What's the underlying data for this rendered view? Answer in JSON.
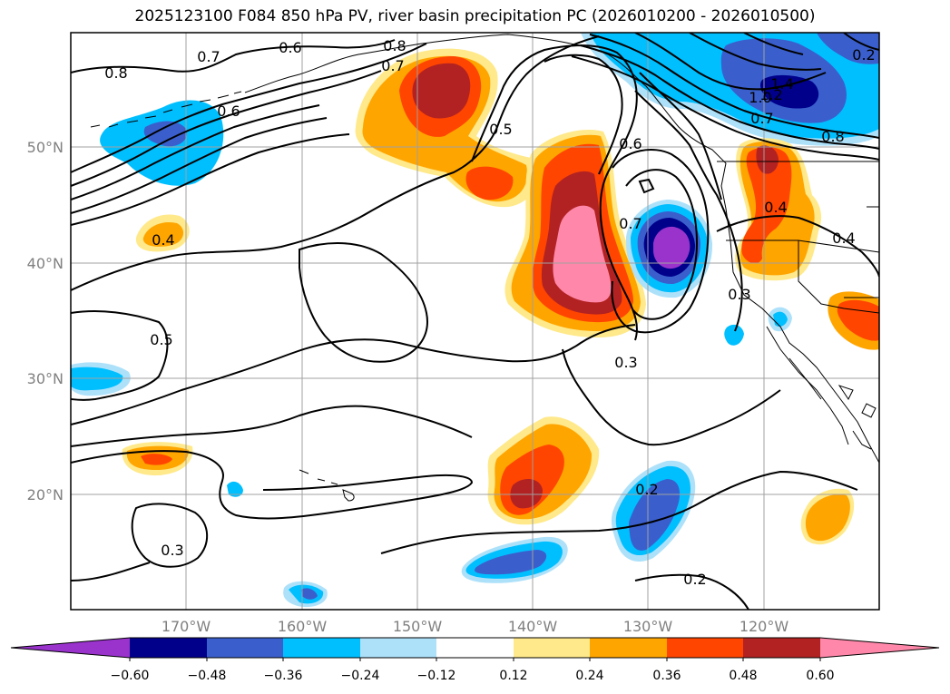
{
  "title": "2025123100 F084 850 hPa PV, river basin precipitation PC (2026010200 - 2026010500)",
  "grid": {
    "lat_labels": [
      "50°N",
      "40°N",
      "30°N",
      "20°N"
    ],
    "lon_labels": [
      "170°W",
      "160°W",
      "150°W",
      "140°W",
      "130°W",
      "120°W"
    ]
  },
  "contour_labels": [
    "0.8",
    "0.7",
    "0.6",
    "0.8",
    "0.7",
    "0.6",
    "0.5",
    "0.6",
    "0.7",
    "0.4",
    "0.5",
    "0.3",
    "0.2",
    "0.2",
    "0.3",
    "1.4",
    "1.2",
    "1.0",
    "0.7",
    "0.8",
    "0.4",
    "0.4",
    "0.3",
    "0.2"
  ],
  "colorbar": {
    "tick_labels": [
      "−0.60",
      "−0.48",
      "−0.36",
      "−0.24",
      "−0.12",
      "0.12",
      "0.24",
      "0.36",
      "0.48",
      "0.60"
    ],
    "colors": [
      "#9933CC",
      "#00008B",
      "#3A5FCD",
      "#00BFFF",
      "#ADE1FA",
      "#FFFFFF",
      "#FFE98A",
      "#FFA500",
      "#FF4500",
      "#B22222",
      "#FF88AA"
    ]
  }
}
